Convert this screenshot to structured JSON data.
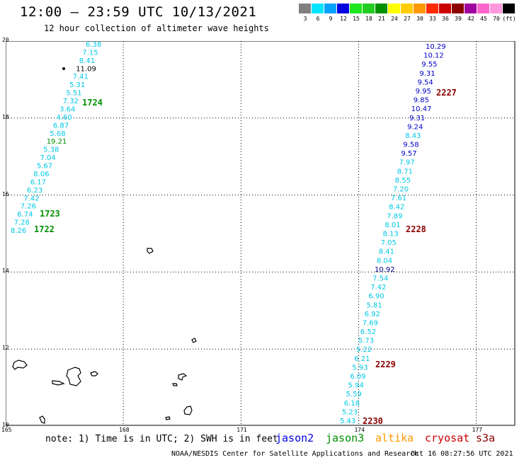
{
  "header": {
    "title": "12:00 – 23:59 UTC 10/13/2021",
    "subtitle": "12 hour collection of altimeter wave heights"
  },
  "scale": {
    "unit_label": "(ft)",
    "bins": [
      {
        "label": "3",
        "color": "#808080"
      },
      {
        "label": "6",
        "color": "#00e5ff"
      },
      {
        "label": "9",
        "color": "#00a2ff"
      },
      {
        "label": "12",
        "color": "#0000e0"
      },
      {
        "label": "15",
        "color": "#1ee61e"
      },
      {
        "label": "18",
        "color": "#22cc22"
      },
      {
        "label": "21",
        "color": "#009000"
      },
      {
        "label": "24",
        "color": "#ffff00"
      },
      {
        "label": "27",
        "color": "#ffcc00"
      },
      {
        "label": "30",
        "color": "#ff9900"
      },
      {
        "label": "33",
        "color": "#ff2a00"
      },
      {
        "label": "36",
        "color": "#cc0000"
      },
      {
        "label": "39",
        "color": "#8b0000"
      },
      {
        "label": "42",
        "color": "#a000a0"
      },
      {
        "label": "45",
        "color": "#ff66cc"
      },
      {
        "label": "70",
        "color": "#ff99dd"
      },
      {
        "label": "",
        "color": "#000000"
      }
    ]
  },
  "map": {
    "lat_ticks": [
      "20",
      "18",
      "16",
      "14",
      "12",
      "10"
    ],
    "lon_ticks": [
      "165",
      "168",
      "171",
      "174",
      "177"
    ],
    "lat_range": [
      10,
      20
    ],
    "lon_range": [
      165,
      178
    ],
    "level_colors": {
      "cyan": "#00c8e6",
      "blue": "#0000c8",
      "navy": "#00008b",
      "green": "#009000",
      "black": "#000000"
    },
    "pass_label_color_jason3": "#009000",
    "pass_label_color_cryosat": "#8b0000",
    "tracks": [
      {
        "points": [
          {
            "v": "6.38",
            "c": "cyan"
          },
          {
            "v": "7.15",
            "c": "cyan"
          },
          {
            "v": "8.41",
            "c": "cyan"
          },
          {
            "v": "11.09",
            "c": "black"
          },
          {
            "v": "7.41",
            "c": "cyan"
          },
          {
            "v": "5.31",
            "c": "cyan"
          },
          {
            "v": "5.51",
            "c": "cyan"
          },
          {
            "v": "7.32",
            "c": "cyan"
          },
          {
            "v": "3.64",
            "c": "cyan"
          },
          {
            "v": "4.60",
            "c": "cyan"
          },
          {
            "v": "6.87",
            "c": "cyan"
          },
          {
            "v": "5.68",
            "c": "cyan"
          },
          {
            "v": "19.21",
            "c": "green"
          },
          {
            "v": "5.38",
            "c": "cyan"
          },
          {
            "v": "7.04",
            "c": "cyan"
          },
          {
            "v": "5.67",
            "c": "cyan"
          },
          {
            "v": "8.06",
            "c": "cyan"
          },
          {
            "v": "6.17",
            "c": "cyan"
          },
          {
            "v": "6.23",
            "c": "cyan"
          },
          {
            "v": "7.42",
            "c": "cyan"
          },
          {
            "v": "7.26",
            "c": "cyan"
          },
          {
            "v": "6.74",
            "c": "cyan"
          },
          {
            "v": "7.28",
            "c": "cyan"
          },
          {
            "v": "8.26",
            "c": "cyan"
          }
        ]
      },
      {
        "points": [
          {
            "v": "10.29",
            "c": "blue"
          },
          {
            "v": "10.12",
            "c": "blue"
          },
          {
            "v": "9.55",
            "c": "blue"
          },
          {
            "v": "9.31",
            "c": "blue"
          },
          {
            "v": "9.54",
            "c": "blue"
          },
          {
            "v": "9.95",
            "c": "blue"
          },
          {
            "v": "9.85",
            "c": "blue"
          },
          {
            "v": "10.47",
            "c": "blue"
          },
          {
            "v": "9.31",
            "c": "blue"
          },
          {
            "v": "9.24",
            "c": "blue"
          },
          {
            "v": "8.43",
            "c": "cyan"
          },
          {
            "v": "9.58",
            "c": "blue"
          },
          {
            "v": "9.57",
            "c": "blue"
          },
          {
            "v": "7.97",
            "c": "cyan"
          },
          {
            "v": "8.71",
            "c": "cyan"
          },
          {
            "v": "8.55",
            "c": "cyan"
          },
          {
            "v": "7.20",
            "c": "cyan"
          },
          {
            "v": "7.61",
            "c": "cyan"
          },
          {
            "v": "8.42",
            "c": "cyan"
          },
          {
            "v": "7.89",
            "c": "cyan"
          },
          {
            "v": "8.01",
            "c": "cyan"
          },
          {
            "v": "8.13",
            "c": "cyan"
          },
          {
            "v": "7.05",
            "c": "cyan"
          },
          {
            "v": "8.41",
            "c": "cyan"
          },
          {
            "v": "8.04",
            "c": "cyan"
          },
          {
            "v": "10.92",
            "c": "navy"
          },
          {
            "v": "7.54",
            "c": "cyan"
          },
          {
            "v": "7.42",
            "c": "cyan"
          },
          {
            "v": "6.90",
            "c": "cyan"
          },
          {
            "v": "5.81",
            "c": "cyan"
          },
          {
            "v": "6.92",
            "c": "cyan"
          },
          {
            "v": "7.69",
            "c": "cyan"
          },
          {
            "v": "6.52",
            "c": "cyan"
          },
          {
            "v": "5.73",
            "c": "cyan"
          },
          {
            "v": "5.22",
            "c": "cyan"
          },
          {
            "v": "6.21",
            "c": "cyan"
          },
          {
            "v": "5.93",
            "c": "cyan"
          },
          {
            "v": "6.09",
            "c": "cyan"
          },
          {
            "v": "5.94",
            "c": "cyan"
          },
          {
            "v": "5.59",
            "c": "cyan"
          },
          {
            "v": "6.18",
            "c": "cyan"
          },
          {
            "v": "5.23",
            "c": "cyan"
          },
          {
            "v": "5.43",
            "c": "cyan"
          }
        ]
      }
    ],
    "pass_labels": [
      {
        "text": "1724",
        "sat": "jason3"
      },
      {
        "text": "1723",
        "sat": "jason3"
      },
      {
        "text": "1722",
        "sat": "jason3"
      },
      {
        "text": "2227",
        "sat": "cryosat"
      },
      {
        "text": "2228",
        "sat": "cryosat"
      },
      {
        "text": "2229",
        "sat": "cryosat"
      },
      {
        "text": "2230",
        "sat": "cryosat"
      }
    ]
  },
  "footer": {
    "note": "note: 1) Time is in UTC; 2) SWH is in feet",
    "legend": [
      {
        "name": "jason2",
        "color": "#0000e0"
      },
      {
        "name": "jason3",
        "color": "#009000"
      },
      {
        "name": "altika",
        "color": "#ff9900"
      },
      {
        "name": "cryosat",
        "color": "#cc0000"
      },
      {
        "name": "s3a",
        "color": "#8b0000"
      }
    ],
    "credit": "NOAA/NESDIS Center for Satellite Applications and Research",
    "timestamp": "Oct 16 08:27:56 UTC 2021"
  }
}
